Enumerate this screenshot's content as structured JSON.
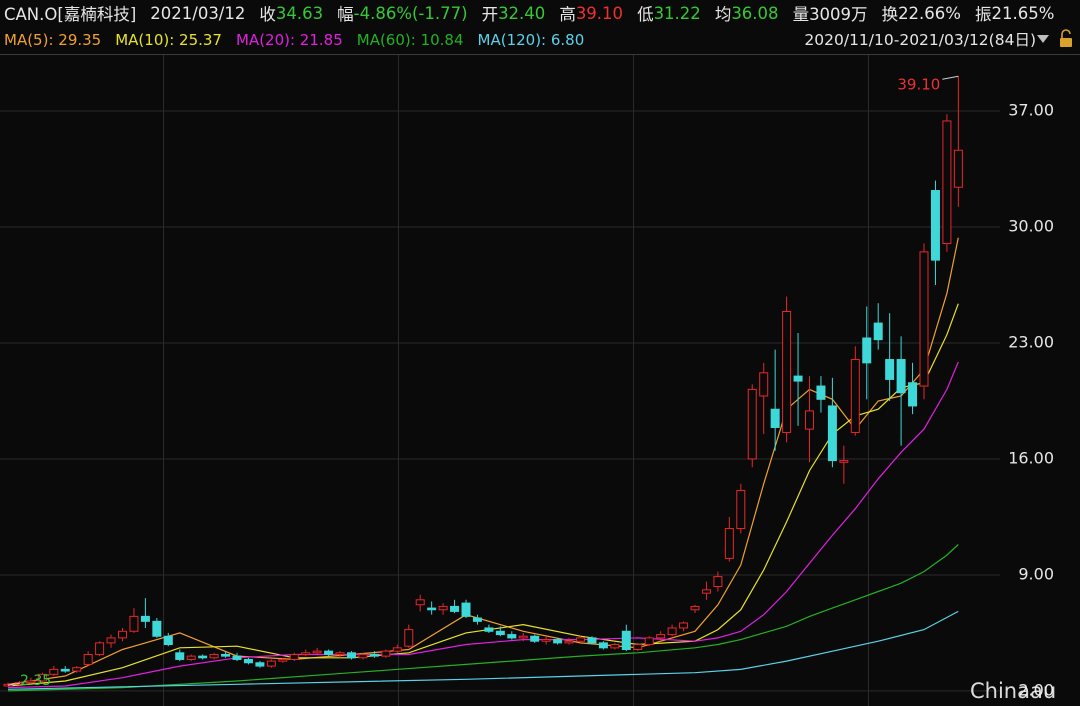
{
  "chart_data": {
    "type": "candlestick",
    "info": [
      {
        "text": "CAN.O[嘉楠科技]",
        "color": "#e6e6e6"
      },
      {
        "text": "2021/03/12",
        "color": "#e6e6e6"
      },
      {
        "text": "收",
        "color": "#e6e6e6"
      },
      {
        "text": "34.63",
        "color": "#35c935"
      },
      {
        "text": "幅",
        "color": "#e6e6e6"
      },
      {
        "text": "-4.86%(-1.77)",
        "color": "#35c935"
      },
      {
        "text": "开",
        "color": "#e6e6e6"
      },
      {
        "text": "32.40",
        "color": "#35c935"
      },
      {
        "text": "高",
        "color": "#e6e6e6"
      },
      {
        "text": "39.10",
        "color": "#ee3030"
      },
      {
        "text": "低",
        "color": "#e6e6e6"
      },
      {
        "text": "31.22",
        "color": "#35c935"
      },
      {
        "text": "均",
        "color": "#e6e6e6"
      },
      {
        "text": "36.08",
        "color": "#35c935"
      },
      {
        "text": "量",
        "color": "#e6e6e6"
      },
      {
        "text": "3009万",
        "color": "#e6e6e6"
      },
      {
        "text": "换",
        "color": "#e6e6e6"
      },
      {
        "text": "22.66%",
        "color": "#e6e6e6"
      },
      {
        "text": "振",
        "color": "#e6e6e6"
      },
      {
        "text": "21.65%",
        "color": "#e6e6e6"
      }
    ],
    "range_label": "2020/11/10-2021/03/12(84日)",
    "watermark": "Chinaau",
    "up_color": "#e8262a",
    "down_color": "#3fd8d8",
    "ylim": [
      1.09,
      40.38
    ],
    "yticks": [
      {
        "value": 2,
        "label": "2.00"
      },
      {
        "value": 9,
        "label": "9.00"
      },
      {
        "value": 16,
        "label": "16.00"
      },
      {
        "value": 23,
        "label": "23.00"
      },
      {
        "value": 30,
        "label": "30.00"
      },
      {
        "value": 37,
        "label": "37.00"
      }
    ],
    "grid": true,
    "high_label": {
      "value": 39.1,
      "label": "39.10",
      "color": "#ee3030"
    },
    "low_label": {
      "value": 2.35,
      "label": "2.35",
      "color": "#35c935"
    },
    "ohlc": [
      [
        2.3,
        2.5,
        2.35,
        2.4
      ],
      [
        2.4,
        2.6,
        2.35,
        2.5
      ],
      [
        2.5,
        2.8,
        2.4,
        2.6
      ],
      [
        2.6,
        3.1,
        2.5,
        3.0
      ],
      [
        3.0,
        3.5,
        2.9,
        3.3
      ],
      [
        3.3,
        3.5,
        3.1,
        3.2
      ],
      [
        3.2,
        3.5,
        3.1,
        3.4
      ],
      [
        3.6,
        4.4,
        3.5,
        4.2
      ],
      [
        4.2,
        5.0,
        4.1,
        4.9
      ],
      [
        4.9,
        5.4,
        4.6,
        5.2
      ],
      [
        5.2,
        5.8,
        5.0,
        5.6
      ],
      [
        5.6,
        7.0,
        5.5,
        6.5
      ],
      [
        6.5,
        7.6,
        5.8,
        6.2
      ],
      [
        6.2,
        6.4,
        5.2,
        5.3
      ],
      [
        5.3,
        5.5,
        4.7,
        4.8
      ],
      [
        4.3,
        4.5,
        3.8,
        3.9
      ],
      [
        3.9,
        4.2,
        3.8,
        4.1
      ],
      [
        4.1,
        4.2,
        3.9,
        4.0
      ],
      [
        4.0,
        4.3,
        3.9,
        4.2
      ],
      [
        4.2,
        4.4,
        4.0,
        4.1
      ],
      [
        4.1,
        4.3,
        3.8,
        3.9
      ],
      [
        3.9,
        4.0,
        3.6,
        3.7
      ],
      [
        3.7,
        3.8,
        3.4,
        3.5
      ],
      [
        3.5,
        3.9,
        3.4,
        3.8
      ],
      [
        3.8,
        4.0,
        3.7,
        3.9
      ],
      [
        3.9,
        4.3,
        3.8,
        4.2
      ],
      [
        4.2,
        4.5,
        4.1,
        4.3
      ],
      [
        4.3,
        4.6,
        4.2,
        4.4
      ],
      [
        4.4,
        4.5,
        4.1,
        4.2
      ],
      [
        4.2,
        4.4,
        4.0,
        4.3
      ],
      [
        4.3,
        4.4,
        3.9,
        4.0
      ],
      [
        4.0,
        4.3,
        3.9,
        4.2
      ],
      [
        4.2,
        4.4,
        4.0,
        4.1
      ],
      [
        4.1,
        4.5,
        4.0,
        4.4
      ],
      [
        4.4,
        4.8,
        4.3,
        4.6
      ],
      [
        4.7,
        6.0,
        4.6,
        5.7
      ],
      [
        7.2,
        7.8,
        6.8,
        7.5
      ],
      [
        7.0,
        7.4,
        6.6,
        6.9
      ],
      [
        6.9,
        7.3,
        6.6,
        7.1
      ],
      [
        7.1,
        7.5,
        6.7,
        6.8
      ],
      [
        7.3,
        7.5,
        6.4,
        6.5
      ],
      [
        6.4,
        6.6,
        6.0,
        6.2
      ],
      [
        5.8,
        6.0,
        5.5,
        5.6
      ],
      [
        5.6,
        5.9,
        5.3,
        5.4
      ],
      [
        5.4,
        5.6,
        5.1,
        5.2
      ],
      [
        5.2,
        5.5,
        5.0,
        5.3
      ],
      [
        5.3,
        5.4,
        4.9,
        5.0
      ],
      [
        5.0,
        5.3,
        4.8,
        5.1
      ],
      [
        5.1,
        5.2,
        4.8,
        4.9
      ],
      [
        4.9,
        5.2,
        4.8,
        5.0
      ],
      [
        5.0,
        5.3,
        4.9,
        5.2
      ],
      [
        5.2,
        5.3,
        4.8,
        4.9
      ],
      [
        4.9,
        5.0,
        4.5,
        4.6
      ],
      [
        4.6,
        4.9,
        4.5,
        4.8
      ],
      [
        5.6,
        6.0,
        4.4,
        4.5
      ],
      [
        4.5,
        4.9,
        4.4,
        4.8
      ],
      [
        4.8,
        5.3,
        4.7,
        5.2
      ],
      [
        5.2,
        5.6,
        5.0,
        5.4
      ],
      [
        5.4,
        6.0,
        5.3,
        5.8
      ],
      [
        5.8,
        6.2,
        5.6,
        6.1
      ],
      [
        6.9,
        7.2,
        6.7,
        7.1
      ],
      [
        7.9,
        8.6,
        7.5,
        8.1
      ],
      [
        8.3,
        9.2,
        8.0,
        8.9
      ],
      [
        10.0,
        12.5,
        9.8,
        11.8
      ],
      [
        11.8,
        14.5,
        11.5,
        14.1
      ],
      [
        16.0,
        20.5,
        15.5,
        20.2
      ],
      [
        19.8,
        21.8,
        17.5,
        21.2
      ],
      [
        19.0,
        22.6,
        16.5,
        17.9
      ],
      [
        17.6,
        25.8,
        17.0,
        24.9
      ],
      [
        21.0,
        23.6,
        18.0,
        20.7
      ],
      [
        17.8,
        21.0,
        15.8,
        18.9
      ],
      [
        20.4,
        21.0,
        18.8,
        19.6
      ],
      [
        19.2,
        20.9,
        15.5,
        15.9
      ],
      [
        15.8,
        16.8,
        14.5,
        15.9
      ],
      [
        17.6,
        22.8,
        17.4,
        22.0
      ],
      [
        23.3,
        25.2,
        19.6,
        21.8
      ],
      [
        24.2,
        25.4,
        22.6,
        23.2
      ],
      [
        22.0,
        24.8,
        19.5,
        20.8
      ],
      [
        22.0,
        23.4,
        16.8,
        20.0
      ],
      [
        20.6,
        21.8,
        18.7,
        19.2
      ],
      [
        20.4,
        29.0,
        19.6,
        28.5
      ],
      [
        32.2,
        32.8,
        26.5,
        28.0
      ],
      [
        29.0,
        36.8,
        28.5,
        36.4
      ],
      [
        32.4,
        39.1,
        31.22,
        34.63
      ]
    ],
    "series": [
      {
        "name": "MA(5): 29.35",
        "color": "#f0a030",
        "x": [
          0,
          5,
          10,
          15,
          20,
          25,
          30,
          35,
          40,
          45,
          50,
          55,
          60,
          62,
          64,
          66,
          68,
          70,
          72,
          74,
          76,
          78,
          80,
          82,
          83
        ],
        "values": [
          2.4,
          2.9,
          4.5,
          5.5,
          4.1,
          3.9,
          4.2,
          4.5,
          6.6,
          5.6,
          4.9,
          4.6,
          5.6,
          7.2,
          9.6,
          14.5,
          19.0,
          20.2,
          19.6,
          17.8,
          19.5,
          19.8,
          21.4,
          26.0,
          29.35
        ]
      },
      {
        "name": "MA(10): 25.37",
        "color": "#e8e22a",
        "x": [
          0,
          5,
          10,
          15,
          20,
          25,
          30,
          35,
          40,
          45,
          50,
          55,
          60,
          62,
          64,
          66,
          68,
          70,
          72,
          74,
          76,
          78,
          80,
          82,
          83
        ],
        "values": [
          2.3,
          2.6,
          3.4,
          4.6,
          4.7,
          4.0,
          4.0,
          4.3,
          5.5,
          6.0,
          5.3,
          4.8,
          5.0,
          5.7,
          6.9,
          9.3,
          12.2,
          15.3,
          17.5,
          18.6,
          19.0,
          20.3,
          20.6,
          23.5,
          25.37
        ]
      },
      {
        "name": "MA(20): 21.85",
        "color": "#e020e0",
        "x": [
          0,
          5,
          10,
          15,
          20,
          25,
          30,
          35,
          40,
          45,
          50,
          55,
          60,
          62,
          64,
          66,
          68,
          70,
          72,
          74,
          76,
          78,
          80,
          82,
          83
        ],
        "values": [
          2.2,
          2.3,
          2.8,
          3.5,
          4.0,
          4.2,
          4.2,
          4.2,
          4.8,
          5.1,
          5.1,
          5.2,
          5.0,
          5.2,
          5.6,
          6.6,
          8.0,
          9.7,
          11.4,
          13.0,
          14.8,
          16.4,
          17.8,
          20.2,
          21.85
        ]
      },
      {
        "name": "MA(60): 10.84",
        "color": "#24b024",
        "x": [
          0,
          10,
          20,
          30,
          40,
          50,
          55,
          60,
          62,
          64,
          66,
          68,
          70,
          72,
          74,
          76,
          78,
          80,
          82,
          83
        ],
        "values": [
          2.0,
          2.2,
          2.6,
          3.1,
          3.6,
          4.1,
          4.3,
          4.6,
          4.8,
          5.1,
          5.5,
          5.9,
          6.5,
          7.0,
          7.5,
          8.0,
          8.5,
          9.2,
          10.2,
          10.84
        ]
      },
      {
        "name": "MA(120): 6.80",
        "color": "#5ad2e8",
        "x": [
          0,
          20,
          40,
          60,
          64,
          68,
          72,
          76,
          80,
          83
        ],
        "values": [
          2.1,
          2.4,
          2.7,
          3.1,
          3.3,
          3.8,
          4.4,
          5.0,
          5.7,
          6.8
        ]
      }
    ]
  }
}
